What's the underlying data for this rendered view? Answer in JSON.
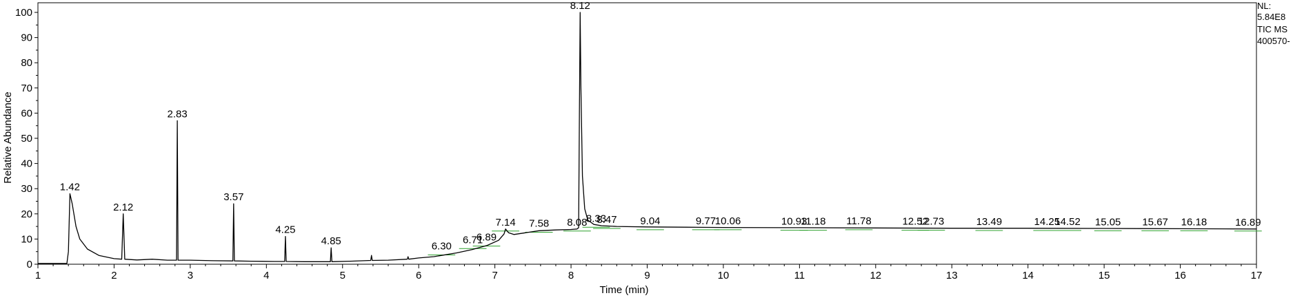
{
  "chart_data": {
    "type": "line",
    "xlabel": "Time (min)",
    "ylabel": "Relative Abundance",
    "xlim": [
      1,
      17
    ],
    "ylim": [
      0,
      100
    ],
    "x_ticks": [
      1,
      2,
      3,
      4,
      5,
      6,
      7,
      8,
      9,
      10,
      11,
      12,
      13,
      14,
      15,
      16,
      17
    ],
    "y_ticks": [
      0,
      10,
      20,
      30,
      40,
      50,
      60,
      70,
      80,
      90,
      100
    ],
    "info": [
      "NL:",
      "5.84E8",
      "TIC  MS",
      "400570-"
    ],
    "line_color": "#000000",
    "baseline_marker_color": "#2ca02c",
    "peaks": [
      {
        "rt": 1.42,
        "label": "1.42",
        "height": 28
      },
      {
        "rt": 2.12,
        "label": "2.12",
        "height": 20
      },
      {
        "rt": 2.83,
        "label": "2.83",
        "height": 57
      },
      {
        "rt": 3.57,
        "label": "3.57",
        "height": 24
      },
      {
        "rt": 4.25,
        "label": "4.25",
        "height": 11
      },
      {
        "rt": 4.85,
        "label": "4.85",
        "height": 6.5
      },
      {
        "rt": 6.3,
        "label": "6.30",
        "height": 4.5
      },
      {
        "rt": 6.71,
        "label": "6.71",
        "height": 7
      },
      {
        "rt": 6.89,
        "label": "6.89",
        "height": 8
      },
      {
        "rt": 7.14,
        "label": "7.14",
        "height": 14
      },
      {
        "rt": 7.58,
        "label": "7.58",
        "height": 13.5
      },
      {
        "rt": 8.08,
        "label": "8.08",
        "height": 14
      },
      {
        "rt": 8.12,
        "label": "8.12",
        "height": 100
      },
      {
        "rt": 8.33,
        "label": "8.33",
        "height": 15.5
      },
      {
        "rt": 8.47,
        "label": "8.47",
        "height": 15
      },
      {
        "rt": 9.04,
        "label": "9.04",
        "height": 14.5
      },
      {
        "rt": 9.77,
        "label": "9.77",
        "height": 14.5
      },
      {
        "rt": 10.06,
        "label": "10.06",
        "height": 14.5
      },
      {
        "rt": 10.93,
        "label": "10.93",
        "height": 14.3
      },
      {
        "rt": 11.18,
        "label": "11.18",
        "height": 14.3
      },
      {
        "rt": 11.78,
        "label": "11.78",
        "height": 14.5
      },
      {
        "rt": 12.52,
        "label": "12.52",
        "height": 14.3
      },
      {
        "rt": 12.73,
        "label": "12.73",
        "height": 14.3
      },
      {
        "rt": 13.49,
        "label": "13.49",
        "height": 14.2
      },
      {
        "rt": 14.25,
        "label": "14.25",
        "height": 14.2
      },
      {
        "rt": 14.52,
        "label": "14.52",
        "height": 14.2
      },
      {
        "rt": 15.05,
        "label": "15.05",
        "height": 14.1
      },
      {
        "rt": 15.67,
        "label": "15.67",
        "height": 14.1
      },
      {
        "rt": 16.18,
        "label": "16.18",
        "height": 14.1
      },
      {
        "rt": 16.89,
        "label": "16.89",
        "height": 14
      }
    ],
    "trace": [
      [
        1.0,
        0.3
      ],
      [
        1.38,
        0.3
      ],
      [
        1.4,
        5
      ],
      [
        1.42,
        28
      ],
      [
        1.45,
        24
      ],
      [
        1.5,
        15
      ],
      [
        1.55,
        10
      ],
      [
        1.65,
        6
      ],
      [
        1.8,
        3.5
      ],
      [
        2.0,
        2.2
      ],
      [
        2.1,
        2
      ],
      [
        2.12,
        20
      ],
      [
        2.14,
        2
      ],
      [
        2.3,
        1.7
      ],
      [
        2.5,
        2
      ],
      [
        2.7,
        1.6
      ],
      [
        2.82,
        1.6
      ],
      [
        2.83,
        57
      ],
      [
        2.84,
        1.6
      ],
      [
        3.0,
        1.6
      ],
      [
        3.3,
        1.4
      ],
      [
        3.56,
        1.3
      ],
      [
        3.57,
        24
      ],
      [
        3.58,
        1.3
      ],
      [
        3.8,
        1.2
      ],
      [
        4.1,
        1.1
      ],
      [
        4.24,
        1.1
      ],
      [
        4.25,
        11
      ],
      [
        4.26,
        1.1
      ],
      [
        4.5,
        1.0
      ],
      [
        4.84,
        1.0
      ],
      [
        4.85,
        6.5
      ],
      [
        4.86,
        1.0
      ],
      [
        5.1,
        1.2
      ],
      [
        5.37,
        1.5
      ],
      [
        5.38,
        3.5
      ],
      [
        5.39,
        1.5
      ],
      [
        5.6,
        1.6
      ],
      [
        5.85,
        2.0
      ],
      [
        5.86,
        3.0
      ],
      [
        5.87,
        2.0
      ],
      [
        6.0,
        2.5
      ],
      [
        6.2,
        3.0
      ],
      [
        6.3,
        3.5
      ],
      [
        6.5,
        4.5
      ],
      [
        6.7,
        5.8
      ],
      [
        6.9,
        7.5
      ],
      [
        7.05,
        9.5
      ],
      [
        7.12,
        12
      ],
      [
        7.14,
        14
      ],
      [
        7.18,
        12.5
      ],
      [
        7.25,
        11.8
      ],
      [
        7.4,
        12.5
      ],
      [
        7.58,
        13.3
      ],
      [
        7.8,
        13.6
      ],
      [
        8.0,
        13.8
      ],
      [
        8.08,
        14
      ],
      [
        8.1,
        14.5
      ],
      [
        8.11,
        60
      ],
      [
        8.12,
        100
      ],
      [
        8.13,
        70
      ],
      [
        8.15,
        35
      ],
      [
        8.18,
        22
      ],
      [
        8.22,
        17.5
      ],
      [
        8.3,
        15.8
      ],
      [
        8.4,
        15.3
      ],
      [
        8.6,
        15.0
      ],
      [
        9.0,
        14.8
      ],
      [
        9.5,
        14.7
      ],
      [
        10.0,
        14.6
      ],
      [
        11.0,
        14.5
      ],
      [
        12.0,
        14.4
      ],
      [
        13.0,
        14.3
      ],
      [
        14.0,
        14.3
      ],
      [
        15.0,
        14.2
      ],
      [
        16.0,
        14.1
      ],
      [
        17.0,
        14.0
      ]
    ]
  }
}
